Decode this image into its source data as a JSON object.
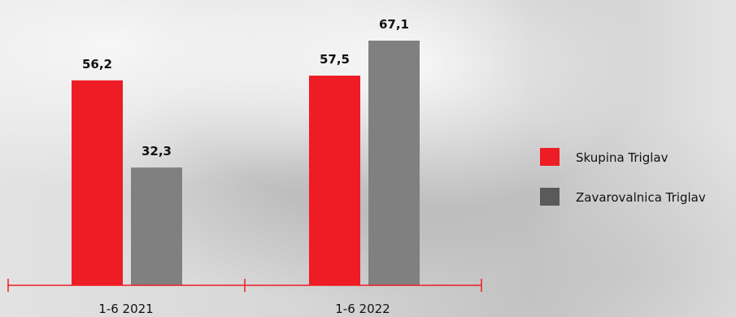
{
  "chart_data": {
    "type": "bar",
    "categories": [
      "1-6 2021",
      "1-6 2022"
    ],
    "series": [
      {
        "name": "Skupina Triglav",
        "color": "#ee1c24",
        "values": [
          56.2,
          57.5
        ],
        "labels": [
          "56,2",
          "57,5"
        ]
      },
      {
        "name": "Zavarovalnica Triglav",
        "color": "#808080",
        "values": [
          32.3,
          67.1
        ],
        "labels": [
          "32,3",
          "67,1"
        ]
      }
    ],
    "legend_colors": [
      "#ee1c24",
      "#5a5a5a"
    ],
    "axis_color": "#ee1c24",
    "ylim": [
      0,
      70
    ],
    "grid": false,
    "legend_position": "right"
  }
}
